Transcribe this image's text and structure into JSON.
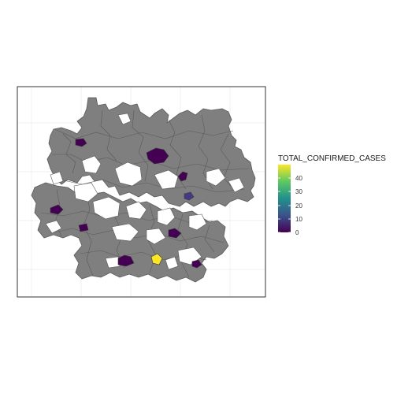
{
  "chart_data": {
    "type": "choropleth",
    "map": "Germany districts (Landkreise)",
    "grid": true,
    "legend_position": "right",
    "legend": {
      "title": "TOTAL_CONFIRMED_CASES",
      "ticks": [
        "40",
        "30",
        "20",
        "10",
        "0"
      ],
      "tick_values": [
        40,
        30,
        20,
        10,
        0
      ],
      "range": [
        0,
        47
      ],
      "palette": "viridis",
      "colors": [
        "#440154",
        "#3b528b",
        "#21908c",
        "#5dc863",
        "#fde725"
      ]
    },
    "no_data_color": "#7f7f7f",
    "highlighted_regions": [
      {
        "color": "#440154",
        "value": 1
      },
      {
        "color": "#440154",
        "value": 1
      },
      {
        "color": "#440154",
        "value": 1
      },
      {
        "color": "#443a83",
        "value": 5
      },
      {
        "color": "#440154",
        "value": 1
      },
      {
        "color": "#440154",
        "value": 1
      },
      {
        "color": "#440154",
        "value": 1
      },
      {
        "color": "#440154",
        "value": 2
      },
      {
        "color": "#fde725",
        "value": 47
      },
      {
        "color": "#440154",
        "value": 1
      }
    ]
  }
}
